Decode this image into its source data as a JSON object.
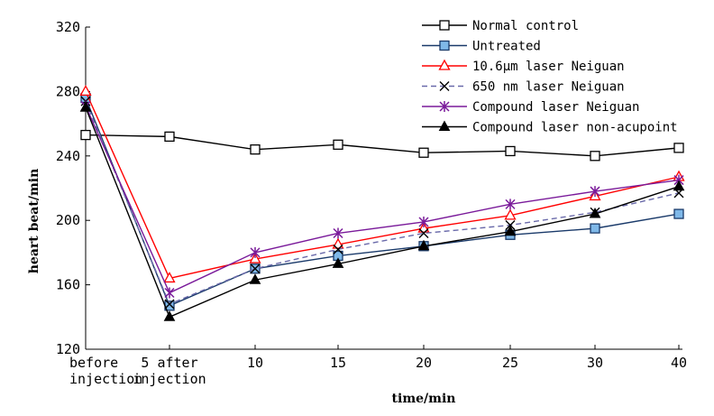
{
  "chart_data": {
    "type": "line",
    "title": "",
    "xlabel": "time/min",
    "ylabel": "heart beat/min",
    "categories": [
      [
        "before",
        "injection"
      ],
      [
        "5 after",
        "injection"
      ],
      [
        "10"
      ],
      [
        "15"
      ],
      [
        "20"
      ],
      [
        "25"
      ],
      [
        "30"
      ],
      [
        "40"
      ]
    ],
    "ylim": [
      120,
      320
    ],
    "yticks": [
      120,
      160,
      200,
      240,
      280,
      320
    ],
    "grid": false,
    "legend_position": "top-right",
    "series": [
      {
        "name": "Normal control",
        "color": "#000000",
        "marker": "square-open",
        "dash": "",
        "values": [
          253,
          252,
          244,
          247,
          242,
          243,
          240,
          245
        ]
      },
      {
        "name": "Untreated",
        "color": "#1a3a6a",
        "marker": "square-filled",
        "dash": "",
        "values": [
          276,
          147,
          170,
          178,
          184,
          191,
          195,
          204
        ]
      },
      {
        "name": "10.6μm laser Neiguan",
        "color": "#ff0000",
        "marker": "triangle-open",
        "dash": "",
        "values": [
          280,
          164,
          176,
          185,
          195,
          203,
          215,
          227
        ]
      },
      {
        "name": "650 nm laser Neiguan",
        "color": "#6a6aaa",
        "marker": "x",
        "dash": "6,4",
        "values": [
          274,
          148,
          170,
          182,
          192,
          197,
          205,
          217
        ]
      },
      {
        "name": "Compound laser Neiguan",
        "color": "#7a1a9a",
        "marker": "asterisk",
        "dash": "",
        "values": [
          271,
          155,
          180,
          192,
          199,
          210,
          218,
          225
        ]
      },
      {
        "name": "Compound laser non-acupoint",
        "color": "#000000",
        "marker": "triangle-filled",
        "dash": "",
        "values": [
          270,
          140,
          163,
          173,
          184,
          193,
          204,
          221
        ]
      }
    ]
  }
}
